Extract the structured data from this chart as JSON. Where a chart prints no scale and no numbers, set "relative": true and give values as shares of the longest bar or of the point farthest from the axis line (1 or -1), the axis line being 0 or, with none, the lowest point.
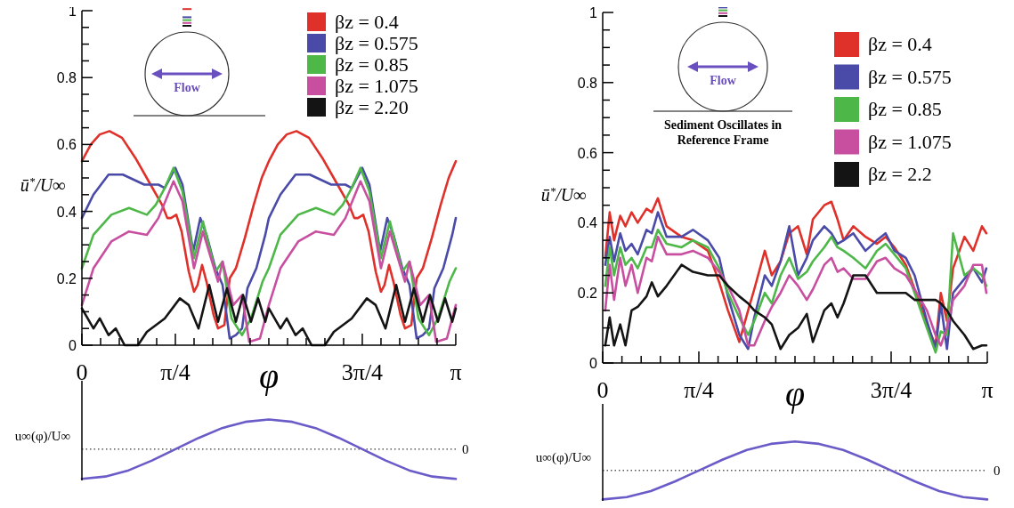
{
  "chart_data": [
    {
      "type": "line",
      "xlabel": "φ",
      "ylabel": "ū$^{*}$/U∞",
      "xlim": [
        0,
        3.142
      ],
      "ylim": [
        0,
        1
      ],
      "legend": "top right",
      "annotations": [
        "Flow"
      ],
      "xticks": [
        0,
        {
          "value": 0.1571,
          "label": null
        },
        {
          "value": 0.3142,
          "label": null
        },
        {
          "value": 0.4712,
          "label": null
        },
        {
          "value": 0.6283,
          "label": null
        },
        {
          "value": 0.7854,
          "label": "π/4"
        },
        {
          "value": 0.9425,
          "label": null
        },
        {
          "value": 1.0996,
          "label": null
        },
        {
          "value": 1.2566,
          "label": null
        },
        {
          "value": 1.4137,
          "label": null
        },
        {
          "value": 1.5708,
          "label": null
        },
        {
          "value": 1.7279,
          "label": null
        },
        {
          "value": 1.885,
          "label": null
        },
        {
          "value": 2.042,
          "label": null
        },
        {
          "value": 2.1991,
          "label": null
        },
        {
          "value": 2.3562,
          "label": "3π/4"
        },
        {
          "value": 2.5133,
          "label": null
        },
        {
          "value": 2.6704,
          "label": null
        },
        {
          "value": 2.8274,
          "label": null
        },
        {
          "value": 2.9845,
          "label": null
        },
        {
          "value": 3.1416,
          "label": "π"
        }
      ],
      "yticks": [
        0,
        {
          "value": 0.05,
          "label": null
        },
        {
          "value": 0.1,
          "label": null
        },
        {
          "value": 0.15,
          "label": null
        },
        0.2,
        {
          "value": 0.25,
          "label": null
        },
        {
          "value": 0.3,
          "label": null
        },
        {
          "value": 0.35,
          "label": null
        },
        0.4,
        {
          "value": 0.45,
          "label": null
        },
        {
          "value": 0.5,
          "label": null
        },
        {
          "value": 0.55,
          "label": null
        },
        0.6,
        {
          "value": 0.65,
          "label": null
        },
        {
          "value": 0.7,
          "label": null
        },
        {
          "value": 0.75,
          "label": null
        },
        0.8,
        {
          "value": 0.85,
          "label": null
        },
        {
          "value": 0.9,
          "label": null
        },
        {
          "value": 0.95,
          "label": null
        },
        1
      ],
      "series": [
        {
          "name": "βz = 0.4",
          "color": "#e0302a",
          "x": [
            0,
            0.075,
            0.15,
            0.232,
            0.337,
            0.449,
            0.561,
            0.673,
            0.718,
            0.748,
            0.793,
            0.838,
            0.898,
            0.942,
            0.972,
            1.01,
            1.047,
            1.107,
            1.144,
            1.197,
            1.242,
            1.294,
            1.369,
            1.444,
            1.511,
            1.571,
            1.646,
            1.721,
            1.803,
            1.908,
            2.02,
            2.132,
            2.244,
            2.289,
            2.319,
            2.364,
            2.409,
            2.469,
            2.513,
            2.543,
            2.581,
            2.618,
            2.678,
            2.715,
            2.768,
            2.813,
            2.865,
            2.94,
            3.015,
            3.082,
            3.142
          ],
          "values": [
            0.55,
            0.6,
            0.63,
            0.64,
            0.62,
            0.56,
            0.49,
            0.42,
            0.38,
            0.38,
            0.39,
            0.34,
            0.22,
            0.16,
            0.18,
            0.24,
            0.19,
            0.09,
            0.05,
            0.06,
            0.2,
            0.23,
            0.32,
            0.42,
            0.5,
            0.55,
            0.6,
            0.63,
            0.64,
            0.62,
            0.56,
            0.49,
            0.42,
            0.38,
            0.38,
            0.39,
            0.34,
            0.22,
            0.16,
            0.18,
            0.24,
            0.19,
            0.09,
            0.05,
            0.06,
            0.2,
            0.23,
            0.32,
            0.42,
            0.5,
            0.55
          ]
        },
        {
          "name": "βz = 0.575",
          "color": "#4a4aa8",
          "x": [
            0,
            0.097,
            0.224,
            0.344,
            0.524,
            0.643,
            0.696,
            0.785,
            0.845,
            0.935,
            0.995,
            1.047,
            1.122,
            1.182,
            1.242,
            1.294,
            1.346,
            1.391,
            1.466,
            1.541,
            1.571,
            1.668,
            1.795,
            1.915,
            2.095,
            2.214,
            2.267,
            2.356,
            2.416,
            2.506,
            2.566,
            2.618,
            2.693,
            2.753,
            2.813,
            2.865,
            2.917,
            2.962,
            3.037,
            3.112,
            3.142
          ],
          "values": [
            0.38,
            0.45,
            0.51,
            0.51,
            0.48,
            0.48,
            0.47,
            0.53,
            0.48,
            0.28,
            0.38,
            0.33,
            0.23,
            0.18,
            0.02,
            0.03,
            0.05,
            0.17,
            0.23,
            0.33,
            0.38,
            0.45,
            0.51,
            0.51,
            0.48,
            0.48,
            0.47,
            0.53,
            0.48,
            0.28,
            0.38,
            0.33,
            0.23,
            0.18,
            0.02,
            0.03,
            0.05,
            0.17,
            0.23,
            0.33,
            0.38
          ]
        },
        {
          "name": "βz = 0.85",
          "color": "#4db848",
          "x": [
            0,
            0.097,
            0.172,
            0.247,
            0.396,
            0.546,
            0.621,
            0.696,
            0.77,
            0.845,
            0.942,
            1.017,
            1.122,
            1.182,
            1.257,
            1.346,
            1.421,
            1.518,
            1.571,
            1.668,
            1.743,
            1.818,
            1.967,
            2.117,
            2.192,
            2.267,
            2.341,
            2.416,
            2.513,
            2.588,
            2.693,
            2.753,
            2.828,
            2.917,
            2.992,
            3.089,
            3.142
          ],
          "values": [
            0.23,
            0.33,
            0.36,
            0.39,
            0.41,
            0.39,
            0.42,
            0.47,
            0.53,
            0.46,
            0.26,
            0.37,
            0.22,
            0.25,
            0.08,
            0.03,
            0.08,
            0.19,
            0.23,
            0.33,
            0.36,
            0.39,
            0.41,
            0.39,
            0.42,
            0.47,
            0.53,
            0.46,
            0.26,
            0.37,
            0.22,
            0.25,
            0.08,
            0.03,
            0.08,
            0.19,
            0.23
          ]
        },
        {
          "name": "βz = 1.075",
          "color": "#c84fa0",
          "x": [
            0,
            0.097,
            0.247,
            0.396,
            0.546,
            0.643,
            0.77,
            0.845,
            0.942,
            1.017,
            1.144,
            1.182,
            1.272,
            1.346,
            1.406,
            1.496,
            1.571,
            1.668,
            1.818,
            1.967,
            2.117,
            2.214,
            2.341,
            2.416,
            2.513,
            2.588,
            2.715,
            2.753,
            2.843,
            2.917,
            2.977,
            3.067,
            3.142
          ],
          "values": [
            0.12,
            0.23,
            0.31,
            0.34,
            0.33,
            0.38,
            0.49,
            0.43,
            0.23,
            0.34,
            0.19,
            0.25,
            0.12,
            0.15,
            0.01,
            0.02,
            0.12,
            0.23,
            0.31,
            0.34,
            0.33,
            0.38,
            0.49,
            0.43,
            0.23,
            0.34,
            0.19,
            0.25,
            0.12,
            0.15,
            0.01,
            0.02,
            0.12
          ]
        },
        {
          "name": "βz = 2.20",
          "color": "#141414",
          "x": [
            0,
            0.097,
            0.15,
            0.224,
            0.284,
            0.359,
            0.471,
            0.546,
            0.696,
            0.823,
            0.898,
            0.98,
            1.07,
            1.144,
            1.219,
            1.294,
            1.354,
            1.421,
            1.481,
            1.541,
            1.571,
            1.668,
            1.721,
            1.795,
            1.855,
            1.93,
            2.042,
            2.117,
            2.267,
            2.394,
            2.469,
            2.551,
            2.641,
            2.715,
            2.79,
            2.865,
            2.925,
            2.992,
            3.052,
            3.112,
            3.142
          ],
          "values": [
            0.11,
            0.05,
            0.08,
            0.03,
            0.05,
            0,
            0,
            0.04,
            0.08,
            0.14,
            0.12,
            0.05,
            0.18,
            0.07,
            0.17,
            0.07,
            0.15,
            0.07,
            0.14,
            0.07,
            0.11,
            0.05,
            0.08,
            0.03,
            0.05,
            0,
            0,
            0.04,
            0.08,
            0.14,
            0.12,
            0.05,
            0.18,
            0.07,
            0.17,
            0.07,
            0.15,
            0.07,
            0.14,
            0.07,
            0.11
          ]
        }
      ]
    },
    {
      "type": "line",
      "relative": true,
      "ylabel": "u∞(φ)/U∞",
      "xlim": [
        0,
        3.1416
      ],
      "ref_lines": [
        {
          "axis": "y",
          "value": 0,
          "label": "0",
          "line_style": "dotted"
        }
      ],
      "series": [
        {
          "color": "#6a5cc8",
          "x": [
            0,
            0.1963,
            0.3927,
            0.589,
            0.7854,
            0.9817,
            1.1781,
            1.3744,
            1.5708,
            1.7671,
            1.9635,
            2.1598,
            2.3562,
            2.5525,
            2.7489,
            2.9452,
            3.1416
          ],
          "values": [
            -1,
            -0.92,
            -0.71,
            -0.38,
            0,
            0.38,
            0.71,
            0.92,
            1,
            0.92,
            0.71,
            0.38,
            0,
            -0.38,
            -0.71,
            -0.92,
            -1
          ]
        }
      ]
    },
    {
      "type": "line",
      "xlabel": "φ",
      "ylabel": "ū$^{*}$/U∞",
      "xlim": [
        0,
        3.1416
      ],
      "ylim": [
        0,
        1
      ],
      "legend": "top right",
      "annotations": [
        "Flow",
        "Sediment Oscillates in Reference Frame"
      ],
      "xticks": [
        0,
        {
          "value": 0.1571,
          "label": null
        },
        {
          "value": 0.3142,
          "label": null
        },
        {
          "value": 0.4712,
          "label": null
        },
        {
          "value": 0.6283,
          "label": null
        },
        {
          "value": 0.7854,
          "label": "π/4"
        },
        {
          "value": 0.9425,
          "label": null
        },
        {
          "value": 1.0996,
          "label": null
        },
        {
          "value": 1.2566,
          "label": null
        },
        {
          "value": 1.4137,
          "label": null
        },
        {
          "value": 1.5708,
          "label": null
        },
        {
          "value": 1.7279,
          "label": null
        },
        {
          "value": 1.885,
          "label": null
        },
        {
          "value": 2.042,
          "label": null
        },
        {
          "value": 2.1991,
          "label": null
        },
        {
          "value": 2.3562,
          "label": "3π/4"
        },
        {
          "value": 2.5133,
          "label": null
        },
        {
          "value": 2.6704,
          "label": null
        },
        {
          "value": 2.8274,
          "label": null
        },
        {
          "value": 2.9845,
          "label": null
        },
        {
          "value": 3.1416,
          "label": "π"
        }
      ],
      "yticks": [
        0,
        {
          "value": 0.05,
          "label": null
        },
        {
          "value": 0.1,
          "label": null
        },
        {
          "value": 0.15,
          "label": null
        },
        0.2,
        {
          "value": 0.25,
          "label": null
        },
        {
          "value": 0.3,
          "label": null
        },
        {
          "value": 0.35,
          "label": null
        },
        0.4,
        {
          "value": 0.45,
          "label": null
        },
        {
          "value": 0.5,
          "label": null
        },
        {
          "value": 0.55,
          "label": null
        },
        0.6,
        {
          "value": 0.65,
          "label": null
        },
        {
          "value": 0.7,
          "label": null
        },
        {
          "value": 0.75,
          "label": null
        },
        0.8,
        {
          "value": 0.85,
          "label": null
        },
        {
          "value": 0.9,
          "label": null
        },
        {
          "value": 0.95,
          "label": null
        },
        1
      ],
      "x": [
        0.021,
        0.057,
        0.093,
        0.143,
        0.186,
        0.236,
        0.286,
        0.358,
        0.401,
        0.451,
        0.522,
        0.644,
        0.737,
        0.859,
        0.952,
        1.023,
        1.116,
        1.188,
        1.238,
        1.324,
        1.381,
        1.453,
        1.524,
        1.596,
        1.667,
        1.717,
        1.81,
        1.868,
        1.918,
        1.968,
        2.047,
        2.147,
        2.24,
        2.311,
        2.383,
        2.476,
        2.548,
        2.648,
        2.719,
        2.762,
        2.812,
        2.862,
        2.955,
        3.027,
        3.098,
        3.134
      ],
      "series": [
        {
          "name": "βz = 0.4",
          "color": "#e0302a",
          "values": [
            0.3,
            0.43,
            0.35,
            0.42,
            0.39,
            0.43,
            0.4,
            0.44,
            0.43,
            0.47,
            0.39,
            0.36,
            0.35,
            0.32,
            0.23,
            0.15,
            0.06,
            0.15,
            0.21,
            0.32,
            0.25,
            0.29,
            0.37,
            0.39,
            0.31,
            0.41,
            0.45,
            0.46,
            0.41,
            0.35,
            0.39,
            0.36,
            0.34,
            0.36,
            0.33,
            0.28,
            0.21,
            0.11,
            0.05,
            0.2,
            0.12,
            0.27,
            0.36,
            0.32,
            0.39,
            0.37
          ]
        },
        {
          "name": "βz = 0.575",
          "color": "#4a4aa8",
          "values": [
            0.28,
            0.36,
            0.29,
            0.37,
            0.32,
            0.34,
            0.31,
            0.38,
            0.37,
            0.43,
            0.36,
            0.36,
            0.38,
            0.35,
            0.3,
            0.19,
            0.08,
            0.04,
            0.13,
            0.25,
            0.22,
            0.29,
            0.39,
            0.25,
            0.3,
            0.35,
            0.39,
            0.37,
            0.34,
            0.35,
            0.37,
            0.32,
            0.35,
            0.37,
            0.32,
            0.3,
            0.25,
            0.12,
            0.04,
            0.17,
            0.04,
            0.2,
            0.24,
            0.27,
            0.23,
            0.27
          ]
        },
        {
          "name": "βz = 0.85",
          "color": "#4db848",
          "values": [
            0.22,
            0.33,
            0.25,
            0.33,
            0.28,
            0.3,
            0.27,
            0.33,
            0.33,
            0.38,
            0.34,
            0.33,
            0.35,
            0.33,
            0.27,
            0.2,
            0.13,
            0.08,
            0.12,
            0.2,
            0.17,
            0.25,
            0.3,
            0.24,
            0.26,
            0.29,
            0.33,
            0.36,
            0.33,
            0.32,
            0.3,
            0.27,
            0.32,
            0.34,
            0.31,
            0.27,
            0.2,
            0.1,
            0.03,
            0.09,
            0.08,
            0.37,
            0.25,
            0.27,
            0.25,
            0.22
          ]
        },
        {
          "name": "βz = 1.075",
          "color": "#c84fa0",
          "values": [
            0.15,
            0.28,
            0.18,
            0.3,
            0.22,
            0.28,
            0.2,
            0.3,
            0.29,
            0.36,
            0.31,
            0.31,
            0.32,
            0.3,
            0.26,
            0.22,
            0.15,
            0.05,
            0.05,
            0.12,
            0.16,
            0.2,
            0.25,
            0.22,
            0.18,
            0.21,
            0.28,
            0.3,
            0.26,
            0.27,
            0.24,
            0.24,
            0.29,
            0.3,
            0.27,
            0.25,
            0.21,
            0.15,
            0.08,
            0.05,
            0.1,
            0.18,
            0.22,
            0.28,
            0.28,
            0.2
          ]
        },
        {
          "name": "βz = 2.2",
          "color": "#141414",
          "values": [
            0.05,
            0.13,
            0.05,
            0.11,
            0.05,
            0.15,
            0.16,
            0.19,
            0.23,
            0.19,
            0.22,
            0.28,
            0.26,
            0.25,
            0.25,
            0.22,
            0.19,
            0.17,
            0.15,
            0.13,
            0.11,
            0.04,
            0.08,
            0.1,
            0.14,
            0.06,
            0.15,
            0.17,
            0.13,
            0.17,
            0.25,
            0.25,
            0.2,
            0.2,
            0.2,
            0.2,
            0.18,
            0.18,
            0.18,
            0.17,
            0.15,
            0.12,
            0.08,
            0.04,
            0.05,
            0.05
          ]
        }
      ]
    },
    {
      "type": "line",
      "relative": true,
      "ylabel": "u∞(φ)/U∞",
      "xlim": [
        0,
        3.1416
      ],
      "ref_lines": [
        {
          "axis": "y",
          "value": 0,
          "label": "0",
          "line_style": "dotted"
        }
      ],
      "series": [
        {
          "color": "#6a5cc8",
          "x": [
            0,
            0.1963,
            0.3927,
            0.589,
            0.7854,
            0.9817,
            1.1781,
            1.3744,
            1.5708,
            1.7671,
            1.9635,
            2.1598,
            2.3562,
            2.5525,
            2.7489,
            2.9452,
            3.1416
          ],
          "values": [
            -1,
            -0.92,
            -0.71,
            -0.38,
            0,
            0.38,
            0.71,
            0.92,
            1,
            0.92,
            0.71,
            0.38,
            0,
            -0.38,
            -0.71,
            -0.92,
            -1
          ]
        }
      ]
    }
  ]
}
